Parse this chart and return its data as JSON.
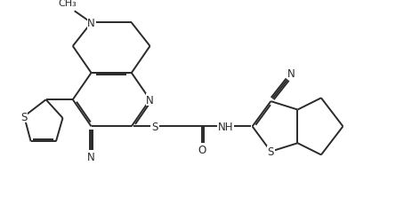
{
  "bg_color": "#ffffff",
  "line_color": "#2a2a2a",
  "line_width": 1.4,
  "font_size": 8.5,
  "figsize": [
    4.54,
    2.32
  ],
  "dpi": 100,
  "xlim": [
    -1.0,
    11.0
  ],
  "ylim": [
    -0.8,
    5.2
  ]
}
